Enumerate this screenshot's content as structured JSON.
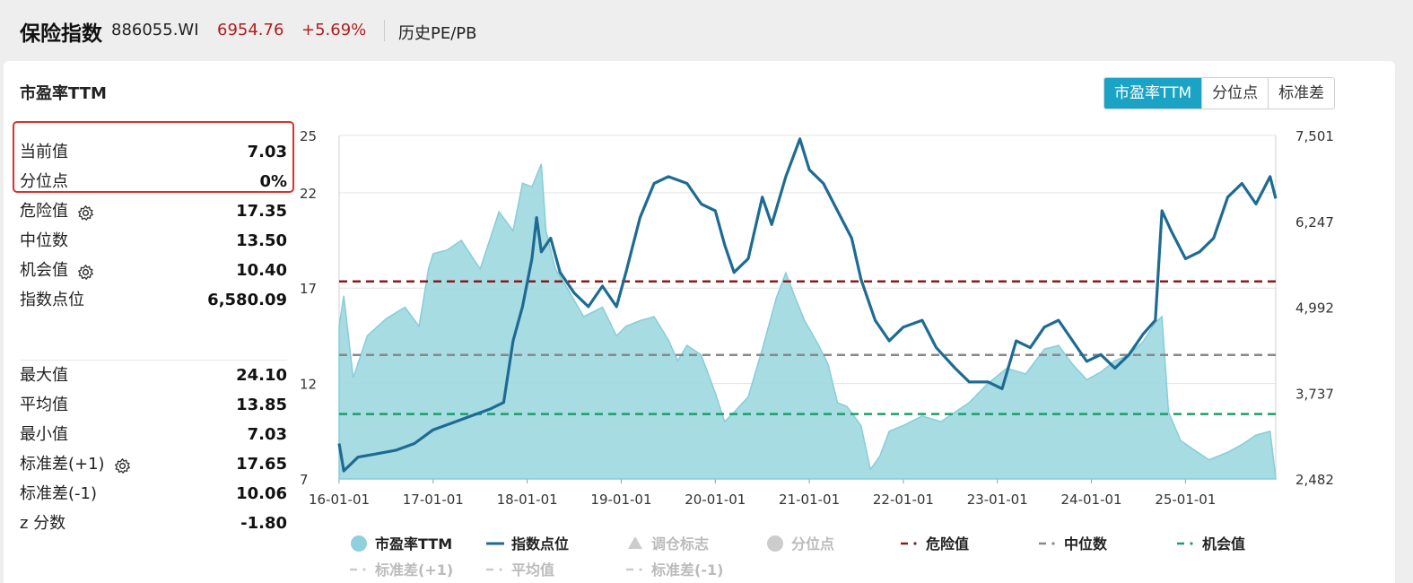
{
  "header": {
    "title": "保险指数",
    "code": "886055.WI",
    "price": "6954.76",
    "change": "+5.69%",
    "history_link": "历史PE/PB"
  },
  "panel": {
    "title": "市盈率TTM",
    "tabs": [
      "市盈率TTM",
      "分位点",
      "标准差"
    ]
  },
  "stats_top": [
    {
      "label": "当前值",
      "value": "7.03"
    },
    {
      "label": "分位点",
      "value": "0%"
    },
    {
      "label": "危险值",
      "value": "17.35",
      "gear": true
    },
    {
      "label": "中位数",
      "value": "13.50"
    },
    {
      "label": "机会值",
      "value": "10.40",
      "gear": true
    },
    {
      "label": "指数点位",
      "value": "6,580.09"
    }
  ],
  "stats_bottom": [
    {
      "label": "最大值",
      "value": "24.10"
    },
    {
      "label": "平均值",
      "value": "13.85"
    },
    {
      "label": "最小值",
      "value": "7.03"
    },
    {
      "label": "标准差(+1)",
      "value": "17.65",
      "gear": true
    },
    {
      "label": "标准差(-1)",
      "value": "10.06"
    },
    {
      "label": "z 分数",
      "value": "-1.80"
    }
  ],
  "colors": {
    "pe_fill": "#9fd8e0",
    "pe_line": "#86cdd9",
    "index_line": "#1d6b93",
    "danger": "#8b1a1a",
    "median": "#888888",
    "opportunity": "#1a9e6a",
    "highlight": "#d9322c",
    "accent_tab": "#1aa3c4"
  },
  "chart_data": {
    "type": "area",
    "x_ticks": [
      "16-01-01",
      "17-01-01",
      "18-01-01",
      "19-01-01",
      "20-01-01",
      "21-01-01",
      "22-01-01",
      "23-01-01",
      "24-01-01",
      "25-01-01"
    ],
    "y_left_ticks": [
      "25",
      "22",
      "17",
      "12",
      "7"
    ],
    "y_left_range": [
      7,
      25
    ],
    "y_right_ticks": [
      "7,501",
      "6,247",
      "4,992",
      "3,737",
      "2,482"
    ],
    "y_right_range": [
      2482,
      7501
    ],
    "series": [
      {
        "name": "市盈率TTM",
        "axis": "left",
        "points": [
          [
            2016.0,
            15.0
          ],
          [
            2016.05,
            16.6
          ],
          [
            2016.15,
            12.3
          ],
          [
            2016.3,
            14.5
          ],
          [
            2016.5,
            15.4
          ],
          [
            2016.7,
            16.0
          ],
          [
            2016.85,
            15.0
          ],
          [
            2016.95,
            18.0
          ],
          [
            2017.0,
            18.8
          ],
          [
            2017.15,
            19.0
          ],
          [
            2017.3,
            19.5
          ],
          [
            2017.5,
            18.0
          ],
          [
            2017.7,
            21.0
          ],
          [
            2017.85,
            20.0
          ],
          [
            2017.95,
            22.5
          ],
          [
            2018.05,
            22.3
          ],
          [
            2018.15,
            23.5
          ],
          [
            2018.2,
            20.0
          ],
          [
            2018.3,
            18.0
          ],
          [
            2018.45,
            16.8
          ],
          [
            2018.6,
            15.5
          ],
          [
            2018.8,
            16.0
          ],
          [
            2018.95,
            14.5
          ],
          [
            2019.05,
            15.0
          ],
          [
            2019.2,
            15.3
          ],
          [
            2019.35,
            15.5
          ],
          [
            2019.5,
            14.3
          ],
          [
            2019.6,
            13.2
          ],
          [
            2019.7,
            14.0
          ],
          [
            2019.85,
            13.5
          ],
          [
            2020.0,
            11.5
          ],
          [
            2020.1,
            10.0
          ],
          [
            2020.2,
            10.5
          ],
          [
            2020.35,
            11.3
          ],
          [
            2020.5,
            13.8
          ],
          [
            2020.65,
            16.5
          ],
          [
            2020.75,
            17.8
          ],
          [
            2020.85,
            16.5
          ],
          [
            2020.95,
            15.3
          ],
          [
            2021.1,
            14.0
          ],
          [
            2021.2,
            13.0
          ],
          [
            2021.3,
            11.0
          ],
          [
            2021.4,
            10.8
          ],
          [
            2021.55,
            9.8
          ],
          [
            2021.65,
            7.5
          ],
          [
            2021.75,
            8.2
          ],
          [
            2021.85,
            9.5
          ],
          [
            2022.0,
            9.8
          ],
          [
            2022.2,
            10.3
          ],
          [
            2022.4,
            10.0
          ],
          [
            2022.55,
            10.5
          ],
          [
            2022.7,
            11.0
          ],
          [
            2022.9,
            12.0
          ],
          [
            2023.1,
            12.8
          ],
          [
            2023.3,
            12.5
          ],
          [
            2023.5,
            13.8
          ],
          [
            2023.65,
            14.0
          ],
          [
            2023.8,
            13.0
          ],
          [
            2023.95,
            12.2
          ],
          [
            2024.1,
            12.6
          ],
          [
            2024.25,
            13.2
          ],
          [
            2024.4,
            13.5
          ],
          [
            2024.55,
            14.2
          ],
          [
            2024.68,
            15.2
          ],
          [
            2024.75,
            15.5
          ],
          [
            2024.82,
            10.5
          ],
          [
            2024.95,
            9.0
          ],
          [
            2025.1,
            8.5
          ],
          [
            2025.25,
            8.0
          ],
          [
            2025.45,
            8.4
          ],
          [
            2025.6,
            8.8
          ],
          [
            2025.75,
            9.3
          ],
          [
            2025.9,
            9.5
          ],
          [
            2025.96,
            7.03
          ]
        ]
      },
      {
        "name": "指数点位",
        "axis": "right",
        "points": [
          [
            2016.0,
            3000
          ],
          [
            2016.05,
            2600
          ],
          [
            2016.2,
            2800
          ],
          [
            2016.4,
            2850
          ],
          [
            2016.6,
            2900
          ],
          [
            2016.8,
            3000
          ],
          [
            2017.0,
            3200
          ],
          [
            2017.2,
            3300
          ],
          [
            2017.4,
            3400
          ],
          [
            2017.6,
            3500
          ],
          [
            2017.75,
            3600
          ],
          [
            2017.85,
            4500
          ],
          [
            2017.95,
            5000
          ],
          [
            2018.05,
            5700
          ],
          [
            2018.1,
            6300
          ],
          [
            2018.15,
            5800
          ],
          [
            2018.25,
            6000
          ],
          [
            2018.35,
            5500
          ],
          [
            2018.5,
            5200
          ],
          [
            2018.65,
            5000
          ],
          [
            2018.8,
            5300
          ],
          [
            2018.95,
            5000
          ],
          [
            2019.05,
            5500
          ],
          [
            2019.2,
            6300
          ],
          [
            2019.35,
            6800
          ],
          [
            2019.5,
            6900
          ],
          [
            2019.7,
            6800
          ],
          [
            2019.85,
            6500
          ],
          [
            2020.0,
            6400
          ],
          [
            2020.1,
            5900
          ],
          [
            2020.2,
            5500
          ],
          [
            2020.35,
            5700
          ],
          [
            2020.5,
            6600
          ],
          [
            2020.6,
            6200
          ],
          [
            2020.75,
            6900
          ],
          [
            2020.9,
            7450
          ],
          [
            2021.0,
            7000
          ],
          [
            2021.15,
            6800
          ],
          [
            2021.3,
            6400
          ],
          [
            2021.45,
            6000
          ],
          [
            2021.55,
            5400
          ],
          [
            2021.7,
            4800
          ],
          [
            2021.85,
            4500
          ],
          [
            2022.0,
            4700
          ],
          [
            2022.2,
            4800
          ],
          [
            2022.35,
            4400
          ],
          [
            2022.55,
            4100
          ],
          [
            2022.7,
            3900
          ],
          [
            2022.9,
            3900
          ],
          [
            2023.05,
            3800
          ],
          [
            2023.2,
            4500
          ],
          [
            2023.35,
            4400
          ],
          [
            2023.5,
            4700
          ],
          [
            2023.65,
            4800
          ],
          [
            2023.8,
            4500
          ],
          [
            2023.95,
            4200
          ],
          [
            2024.1,
            4300
          ],
          [
            2024.25,
            4100
          ],
          [
            2024.4,
            4300
          ],
          [
            2024.55,
            4600
          ],
          [
            2024.68,
            4800
          ],
          [
            2024.75,
            6400
          ],
          [
            2024.85,
            6100
          ],
          [
            2025.0,
            5700
          ],
          [
            2025.15,
            5800
          ],
          [
            2025.3,
            6000
          ],
          [
            2025.45,
            6600
          ],
          [
            2025.6,
            6800
          ],
          [
            2025.75,
            6500
          ],
          [
            2025.9,
            6900
          ],
          [
            2025.96,
            6580
          ]
        ]
      }
    ],
    "reference_lines": [
      {
        "name": "危险值",
        "value": 17.35
      },
      {
        "name": "中位数",
        "value": 13.5
      },
      {
        "name": "机会值",
        "value": 10.4
      }
    ],
    "legend": [
      "市盈率TTM",
      "指数点位",
      "调仓标志",
      "分位点",
      "危险值",
      "中位数",
      "机会值",
      "标准差(+1)",
      "平均值",
      "标准差(-1)"
    ],
    "legend_position": "bottom",
    "grid": true
  }
}
